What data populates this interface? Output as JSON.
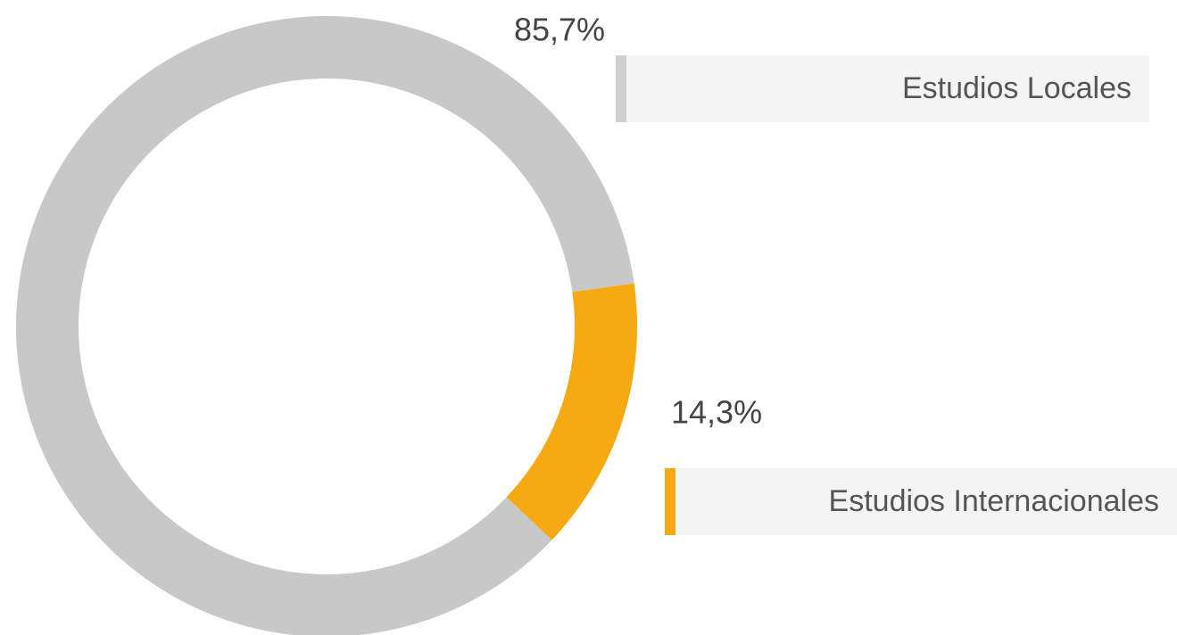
{
  "chart_data": {
    "type": "pie",
    "donut": true,
    "categories": [
      "Estudios Locales",
      "Estudios Internacionales"
    ],
    "values": [
      85.7,
      14.3
    ],
    "value_labels": [
      "85,7%",
      "14,3%"
    ],
    "colors": [
      "#c8c8c8",
      "#f5aa12"
    ]
  }
}
